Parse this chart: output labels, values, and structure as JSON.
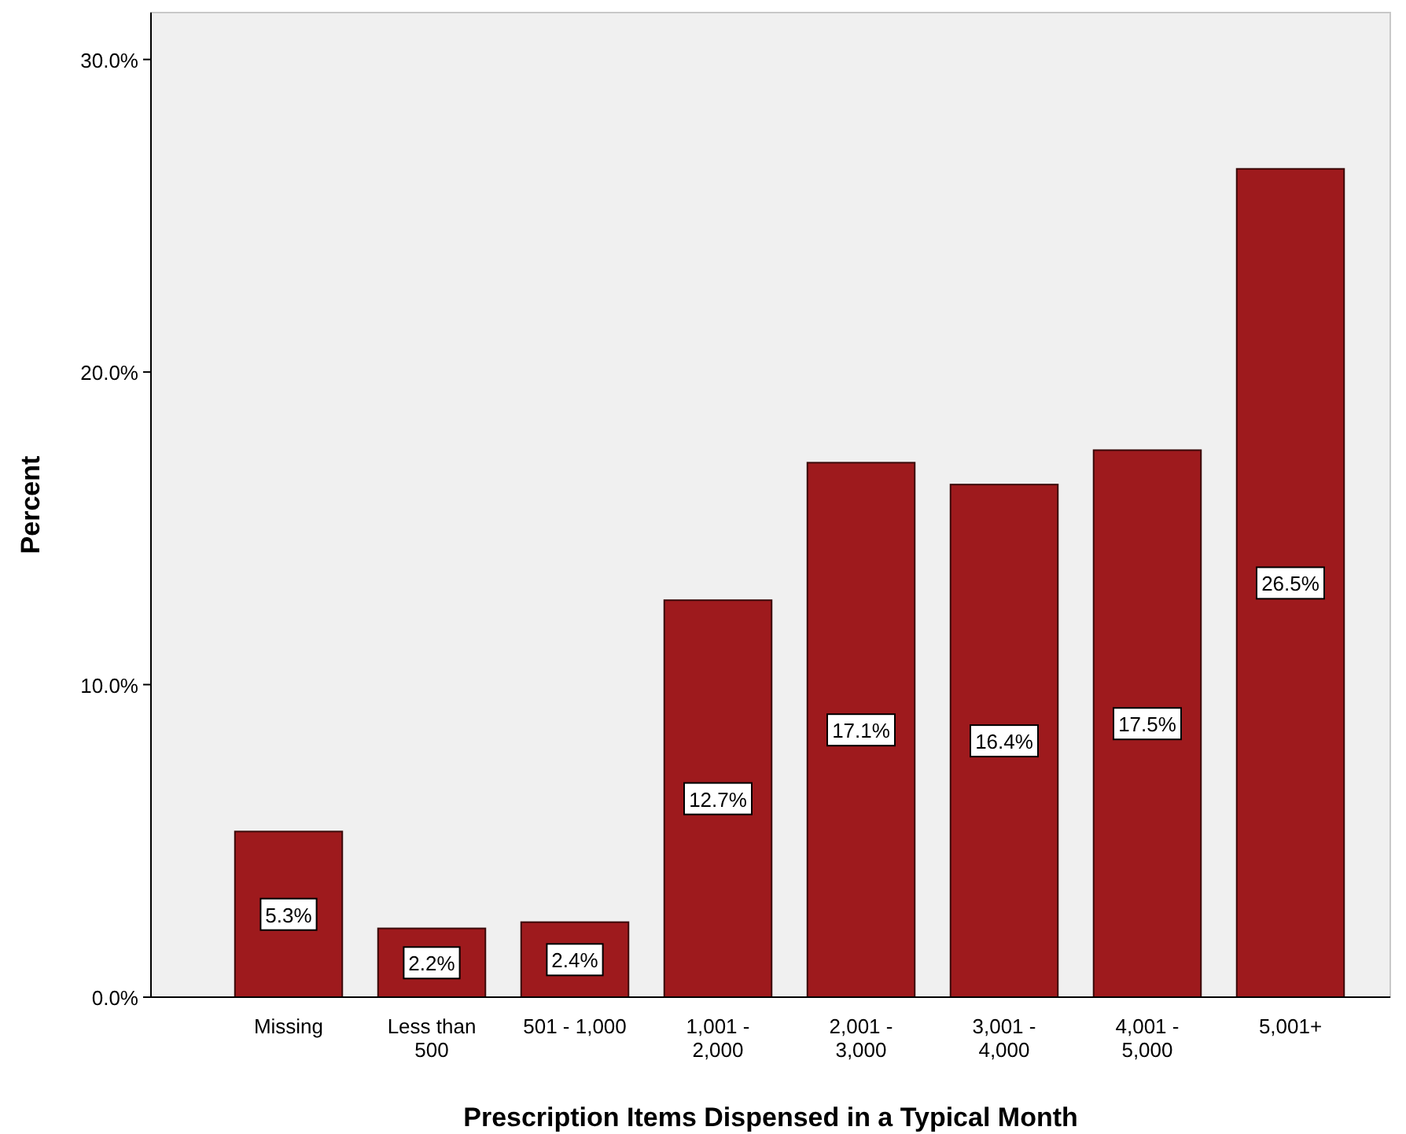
{
  "chart_data": {
    "type": "bar",
    "xlabel": "Prescription Items Dispensed in a Typical Month",
    "ylabel": "Percent",
    "categories": [
      "Missing",
      "Less than 500",
      "501 - 1,000",
      "1,001 - 2,000",
      "2,001 - 3,000",
      "3,001 - 4,000",
      "4,001 - 5,000",
      "5,001+"
    ],
    "values": [
      5.3,
      2.2,
      2.4,
      12.7,
      17.1,
      16.4,
      17.5,
      26.5
    ],
    "value_labels": [
      "5.3%",
      "2.2%",
      "2.4%",
      "12.7%",
      "17.1%",
      "16.4%",
      "17.5%",
      "26.5%"
    ],
    "color": "#9e1a1d",
    "ylim": [
      0,
      31.5
    ],
    "yticks": [
      {
        "value": 0,
        "label": "0.0%"
      },
      {
        "value": 10,
        "label": "10.0%"
      },
      {
        "value": 20,
        "label": "20.0%"
      },
      {
        "value": 30,
        "label": "30.0%"
      }
    ],
    "grid": false
  }
}
